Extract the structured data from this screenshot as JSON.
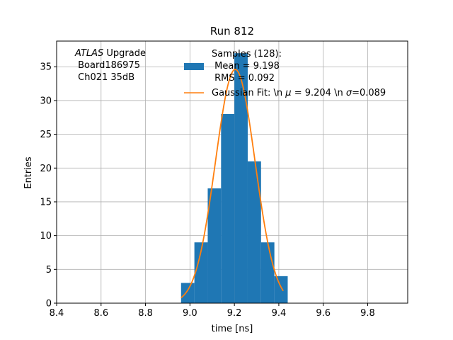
{
  "chart_data": {
    "type": "bar",
    "title": "Run 812",
    "xlabel": "time [ns]",
    "ylabel": "Entries",
    "xlim": [
      8.4,
      9.98
    ],
    "ylim": [
      0,
      38.8
    ],
    "xticks": [
      "8.4",
      "8.6",
      "8.8",
      "9.0",
      "9.2",
      "9.4",
      "9.6",
      "9.8"
    ],
    "xtick_values": [
      8.4,
      8.6,
      8.8,
      9.0,
      9.2,
      9.4,
      9.6,
      9.8
    ],
    "yticks": [
      "0",
      "5",
      "10",
      "15",
      "20",
      "25",
      "30",
      "35"
    ],
    "ytick_values": [
      0,
      5,
      10,
      15,
      20,
      25,
      30,
      35
    ],
    "grid": true,
    "bin_edges": [
      8.96,
      9.02,
      9.08,
      9.14,
      9.2,
      9.26,
      9.32,
      9.38,
      9.44
    ],
    "counts": [
      3,
      9,
      17,
      28,
      37,
      21,
      9,
      4
    ],
    "bar_color": "#1f77b4",
    "fit_color": "#ff7f0e",
    "fit": {
      "amplitude": 34.6,
      "mu": 9.204,
      "sigma": 0.089,
      "x_start": 8.96,
      "x_end": 9.42
    },
    "annotation": {
      "line1_italic": "ATLAS",
      "line1_rest": " Upgrade",
      "line2": " Board186975",
      "line3": " Ch021 35dB"
    },
    "legend": {
      "placement": "top-center",
      "hist_lines": [
        "Samples (128):",
        " Mean = 9.198",
        " RMS = 0.092"
      ],
      "fit_label_prefix": "Gaussian Fit: \\n ",
      "fit_mu_symbol": "μ",
      "fit_mu_text": " = 9.204 \\n ",
      "fit_sigma_symbol": "σ",
      "fit_sigma_text": "=0.089"
    }
  }
}
